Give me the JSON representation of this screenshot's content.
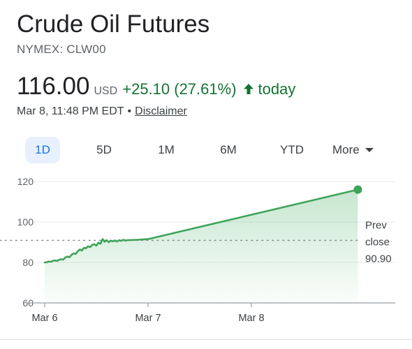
{
  "header": {
    "title": "Crude Oil Futures",
    "exchange": "NYMEX: CLW00"
  },
  "quote": {
    "price": "116.00",
    "currency": "USD",
    "change": "+25.10 (27.61%)",
    "period": "today",
    "timestamp": "Mar 8, 11:48 PM EDT",
    "separator": "•",
    "disclaimer": "Disclaimer"
  },
  "tabs": [
    {
      "label": "1D",
      "active": true
    },
    {
      "label": "5D",
      "active": false
    },
    {
      "label": "1M",
      "active": false
    },
    {
      "label": "6M",
      "active": false
    },
    {
      "label": "YTD",
      "active": false
    },
    {
      "label": "More",
      "active": false
    }
  ],
  "colors": {
    "line": "#3ea35a",
    "positive": "#137333",
    "active_tab": "#1a73e8",
    "fill": "#34a853"
  },
  "icons": {
    "change_arrow": "arrow-up-icon",
    "more_caret": "caret-down-icon"
  },
  "chart_data": {
    "type": "area",
    "x_tick_labels": [
      "Mar 6",
      "Mar 7",
      "Mar 8"
    ],
    "y_ticks": [
      120,
      100,
      80,
      60
    ],
    "ylim": [
      60,
      120
    ],
    "prev_close": {
      "line1": "Prev",
      "line2": "close",
      "value": "90.90",
      "numeric": 90.9
    },
    "series": [
      {
        "values": [
          [
            0.0,
            80.0
          ],
          [
            0.02,
            80.1
          ],
          [
            0.04,
            80.5
          ],
          [
            0.06,
            80.3
          ],
          [
            0.08,
            80.8
          ],
          [
            0.1,
            81.0
          ],
          [
            0.12,
            80.8
          ],
          [
            0.14,
            81.3
          ],
          [
            0.16,
            81.6
          ],
          [
            0.18,
            81.4
          ],
          [
            0.2,
            82.5
          ],
          [
            0.22,
            82.9
          ],
          [
            0.24,
            82.6
          ],
          [
            0.26,
            83.8
          ],
          [
            0.28,
            84.5
          ],
          [
            0.3,
            84.2
          ],
          [
            0.32,
            85.5
          ],
          [
            0.34,
            86.4
          ],
          [
            0.36,
            85.9
          ],
          [
            0.38,
            87.2
          ],
          [
            0.4,
            87.0
          ],
          [
            0.42,
            88.0
          ],
          [
            0.44,
            87.6
          ],
          [
            0.46,
            88.7
          ],
          [
            0.48,
            89.0
          ],
          [
            0.5,
            88.3
          ],
          [
            0.52,
            89.8
          ],
          [
            0.54,
            89.2
          ],
          [
            0.56,
            91.6
          ],
          [
            0.58,
            90.2
          ],
          [
            0.6,
            91.0
          ],
          [
            0.62,
            90.0
          ],
          [
            0.64,
            90.8
          ],
          [
            0.66,
            90.4
          ],
          [
            0.68,
            90.9
          ],
          [
            0.7,
            90.3
          ],
          [
            0.72,
            91.0
          ],
          [
            0.74,
            90.7
          ],
          [
            0.76,
            91.2
          ],
          [
            0.78,
            90.8
          ],
          [
            0.8,
            91.0
          ],
          [
            0.9,
            91.2
          ],
          [
            1.0,
            91.5
          ],
          [
            3.03,
            116.0
          ]
        ]
      }
    ],
    "grid": true
  }
}
